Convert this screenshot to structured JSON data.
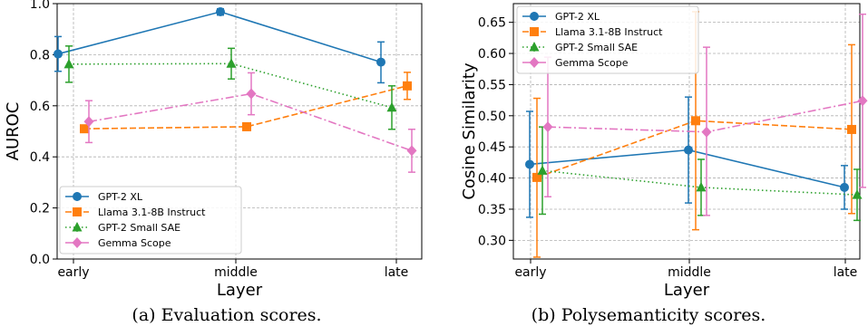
{
  "figure": {
    "captions": [
      "(a) Evaluation scores.",
      "(b) Polysemanticity scores."
    ]
  },
  "chart_data": [
    {
      "type": "line",
      "title": "",
      "xlabel": "Layer",
      "ylabel": "AUROC",
      "categories": [
        "early",
        "middle",
        "late"
      ],
      "ylim": [
        0.0,
        1.0
      ],
      "yticks": [
        "0.0",
        "0.2",
        "0.4",
        "0.6",
        "0.8",
        "1.0"
      ],
      "grid": true,
      "legend_position": "lower-left",
      "series": [
        {
          "name": "GPT-2 XL",
          "color": "#1f77b4",
          "marker": "circle",
          "linestyle": "solid",
          "values": [
            0.803,
            0.968,
            0.771
          ],
          "err_low": [
            0.735,
            0.955,
            0.69
          ],
          "err_high": [
            0.871,
            0.98,
            0.85
          ]
        },
        {
          "name": "Llama 3.1-8B Instruct",
          "color": "#ff7f0e",
          "marker": "square",
          "linestyle": "dashed",
          "values": [
            0.51,
            0.518,
            0.678
          ],
          "err_low": [
            0.51,
            0.518,
            0.625
          ],
          "err_high": [
            0.51,
            0.518,
            0.731
          ]
        },
        {
          "name": "GPT-2 Small SAE",
          "color": "#2ca02c",
          "marker": "triangle",
          "linestyle": "dotted",
          "values": [
            0.763,
            0.765,
            0.593
          ],
          "err_low": [
            0.692,
            0.705,
            0.508
          ],
          "err_high": [
            0.834,
            0.825,
            0.678
          ]
        },
        {
          "name": "Gemma Scope",
          "color": "#e377c2",
          "marker": "diamond",
          "linestyle": "dashdot",
          "values": [
            0.538,
            0.647,
            0.424
          ],
          "err_low": [
            0.456,
            0.565,
            0.34
          ],
          "err_high": [
            0.62,
            0.729,
            0.508
          ]
        }
      ]
    },
    {
      "type": "line",
      "title": "",
      "xlabel": "Layer",
      "ylabel": "Cosine Similarity",
      "categories": [
        "early",
        "middle",
        "late"
      ],
      "ylim": [
        0.27,
        0.68
      ],
      "yticks": [
        "0.30",
        "0.35",
        "0.40",
        "0.45",
        "0.50",
        "0.55",
        "0.60",
        "0.65"
      ],
      "grid": true,
      "legend_position": "upper-left",
      "series": [
        {
          "name": "GPT-2 XL",
          "color": "#1f77b4",
          "marker": "circle",
          "linestyle": "solid",
          "values": [
            0.422,
            0.445,
            0.385
          ],
          "err_low": [
            0.337,
            0.36,
            0.35
          ],
          "err_high": [
            0.507,
            0.53,
            0.42
          ]
        },
        {
          "name": "Llama 3.1-8B Instruct",
          "color": "#ff7f0e",
          "marker": "square",
          "linestyle": "dashed",
          "values": [
            0.401,
            0.492,
            0.478
          ],
          "err_low": [
            0.273,
            0.317,
            0.343
          ],
          "err_high": [
            0.528,
            0.667,
            0.614
          ]
        },
        {
          "name": "GPT-2 Small SAE",
          "color": "#2ca02c",
          "marker": "triangle",
          "linestyle": "dotted",
          "values": [
            0.412,
            0.385,
            0.373
          ],
          "err_low": [
            0.342,
            0.34,
            0.332
          ],
          "err_high": [
            0.482,
            0.43,
            0.414
          ]
        },
        {
          "name": "Gemma Scope",
          "color": "#e377c2",
          "marker": "diamond",
          "linestyle": "dashdot",
          "values": [
            0.482,
            0.474,
            0.524
          ],
          "err_low": [
            0.37,
            0.34,
            0.385
          ],
          "err_high": [
            0.594,
            0.61,
            0.663
          ]
        }
      ]
    }
  ]
}
